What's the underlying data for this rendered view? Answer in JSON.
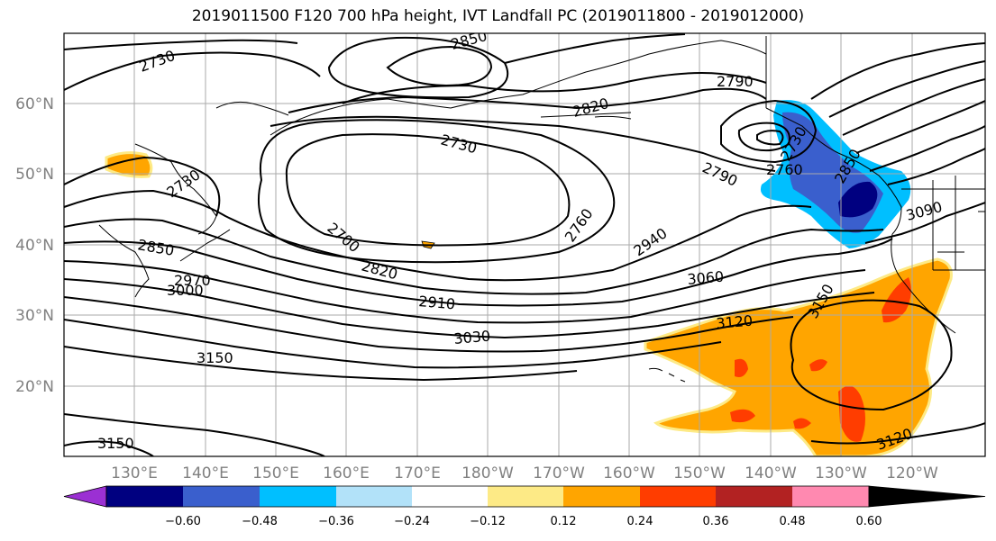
{
  "title": "2019011500 F120 700 hPa height, IVT Landfall PC (2019011800 - 2019012000)",
  "map": {
    "lat_labels": [
      "60°N",
      "50°N",
      "40°N",
      "30°N",
      "20°N"
    ],
    "lon_labels": [
      "130°E",
      "140°E",
      "150°E",
      "160°E",
      "170°E",
      "180°W",
      "170°W",
      "160°W",
      "150°W",
      "140°W",
      "130°W",
      "120°W"
    ],
    "contour_labels": [
      "2730",
      "2850",
      "2790",
      "2820",
      "2730",
      "2790",
      "2760",
      "2730",
      "2850",
      "2730",
      "2700",
      "2760",
      "2850",
      "2820",
      "2940",
      "3090",
      "2970",
      "3000",
      "2910",
      "3060",
      "3120",
      "3150",
      "3030",
      "3150",
      "3150",
      "3120"
    ]
  },
  "colorbar": {
    "colors": [
      "#9b30d3",
      "#000080",
      "#3a5fcd",
      "#00bfff",
      "#b2e2f9",
      "#ffffff",
      "#fdea86",
      "#ffa500",
      "#ff3d00",
      "#b22222",
      "#ff89b0"
    ],
    "ticks": [
      "−0.60",
      "−0.48",
      "−0.36",
      "−0.24",
      "−0.12",
      "0.12",
      "0.24",
      "0.36",
      "0.48",
      "0.60"
    ]
  }
}
